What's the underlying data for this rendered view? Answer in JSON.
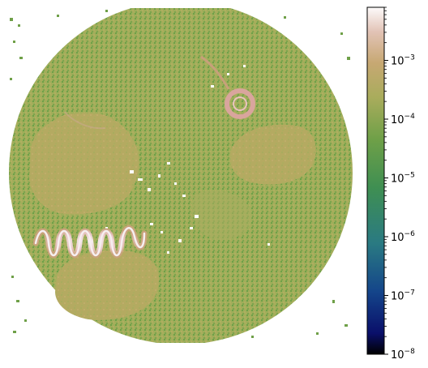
{
  "image": {
    "description_colormap": "gist_earth",
    "scale": "log"
  },
  "colorbar": {
    "scale": "log",
    "colormap": "gist_earth",
    "ticks": [
      {
        "exp": -3,
        "base": "10",
        "sup": "−3",
        "value": 0.001
      },
      {
        "exp": -4,
        "base": "10",
        "sup": "−4",
        "value": 0.0001
      },
      {
        "exp": -5,
        "base": "10",
        "sup": "−5",
        "value": 1e-05
      },
      {
        "exp": -6,
        "base": "10",
        "sup": "−6",
        "value": 1e-06
      },
      {
        "exp": -7,
        "base": "10",
        "sup": "−7",
        "value": 1e-07
      },
      {
        "exp": -8,
        "base": "10",
        "sup": "−8",
        "value": 1e-08
      }
    ],
    "range": [
      1e-08,
      0.008
    ]
  },
  "colors": {
    "background": "#ffffff",
    "field": "#9fae5a",
    "field_dark": "#6f9c48",
    "field_green": "#5a9a42",
    "object": "#b5ab62",
    "object_light": "#c6aa75",
    "bright": "#f3e6ea",
    "highlight": "#e6b7b2"
  }
}
